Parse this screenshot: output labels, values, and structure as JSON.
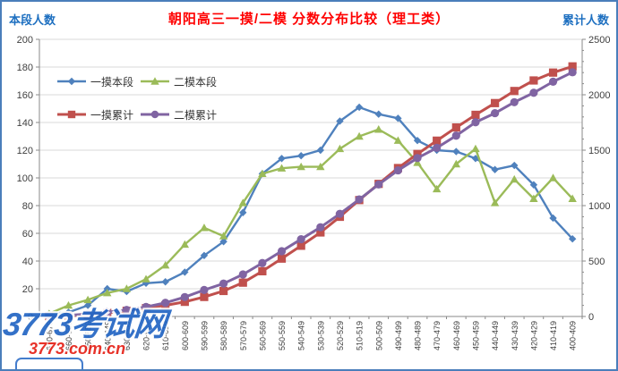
{
  "title": "朝阳高三一摸/二模 分数分布比较（理工类）",
  "left_axis": {
    "title": "本段人数",
    "ticks": [
      0,
      20,
      40,
      60,
      80,
      100,
      120,
      140,
      160,
      180,
      200
    ]
  },
  "right_axis": {
    "title": "累计人数",
    "ticks": [
      0,
      500,
      1000,
      1500,
      2000,
      2500
    ],
    "minor_step": 100
  },
  "watermark": {
    "line1": "3773考试网",
    "line2": "3773.com.cn"
  },
  "chart_data": {
    "type": "line",
    "title": "朝阳高三一摸/二模 分数分布比较（理工类）",
    "xlabel": "",
    "left_ylabel": "本段人数",
    "right_ylabel": "累计人数",
    "left_ylim": [
      0,
      200
    ],
    "right_ylim": [
      0,
      2500
    ],
    "grid": true,
    "legend_position": "top-left-inside",
    "categories": [
      "670-679",
      "660-669",
      "650-659",
      "640-649",
      "630-639",
      "620-629",
      "610-619",
      "600-609",
      "590-599",
      "580-589",
      "570-579",
      "560-569",
      "550-559",
      "540-549",
      "530-539",
      "520-529",
      "510-519",
      "500-509",
      "490-499",
      "480-489",
      "470-479",
      "460-469",
      "450-459",
      "440-449",
      "430-439",
      "420-429",
      "410-419",
      "400-409"
    ],
    "series": [
      {
        "name": "一摸本段",
        "axis": "left",
        "color": "#4F81BD",
        "marker": "diamond",
        "values": [
          2,
          3,
          8,
          20,
          18,
          24,
          25,
          32,
          44,
          54,
          75,
          103,
          114,
          116,
          120,
          141,
          151,
          146,
          143,
          127,
          120,
          119,
          114,
          106,
          109,
          95,
          71,
          56
        ]
      },
      {
        "name": "二模本段",
        "axis": "left",
        "color": "#9BBB59",
        "marker": "triangle",
        "values": [
          2,
          8,
          12,
          17,
          20,
          27,
          37,
          52,
          64,
          58,
          82,
          103,
          107,
          108,
          108,
          121,
          130,
          135,
          127,
          111,
          92,
          110,
          121,
          82,
          99,
          85,
          100,
          85
        ]
      },
      {
        "name": "一摸累计",
        "axis": "right",
        "color": "#C0504D",
        "marker": "square",
        "values": [
          2,
          5,
          13,
          33,
          51,
          75,
          100,
          132,
          176,
          230,
          305,
          408,
          522,
          638,
          758,
          899,
          1050,
          1196,
          1339,
          1466,
          1586,
          1705,
          1819,
          1925,
          2034,
          2129,
          2200,
          2256
        ]
      },
      {
        "name": "二模累计",
        "axis": "right",
        "color": "#8064A2",
        "marker": "circle",
        "values": [
          2,
          10,
          22,
          39,
          59,
          86,
          123,
          175,
          239,
          297,
          379,
          482,
          589,
          697,
          805,
          926,
          1056,
          1191,
          1318,
          1429,
          1521,
          1631,
          1752,
          1834,
          1933,
          2018,
          2118,
          2203
        ]
      }
    ]
  }
}
